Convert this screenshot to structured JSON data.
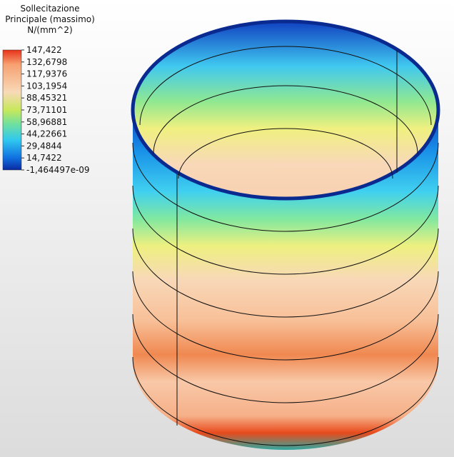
{
  "legend": {
    "title": [
      "Sollecitazione",
      "Principale (massimo)",
      "N/(mm^2)"
    ],
    "labels": [
      "147,422",
      "132,6798",
      "117,9376",
      "103,1954",
      "88,45321",
      "73,71101",
      "58,96881",
      "44,22661",
      "29,4844",
      "14,7422",
      "-1,464497e-09"
    ]
  }
}
